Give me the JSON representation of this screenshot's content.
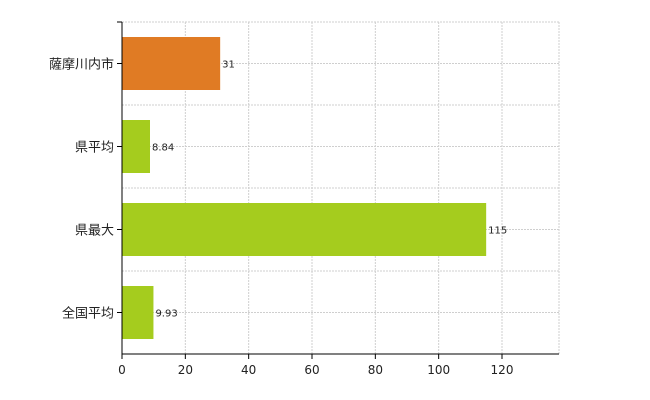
{
  "chart_data": {
    "type": "bar",
    "orientation": "horizontal",
    "categories": [
      "薩摩川内市",
      "県平均",
      "県最大",
      "全国平均"
    ],
    "values": [
      31,
      8.84,
      115,
      9.93
    ],
    "data_labels": [
      "31",
      "8.84",
      "115",
      "9.93"
    ],
    "bar_colors": [
      "#e07b24",
      "#a5cc1e",
      "#a5cc1e",
      "#a5cc1e"
    ],
    "xlim": [
      0,
      138
    ],
    "xticks": [
      0,
      20,
      40,
      60,
      80,
      100,
      120
    ],
    "grid": true,
    "title": "",
    "xlabel": "",
    "ylabel": ""
  }
}
